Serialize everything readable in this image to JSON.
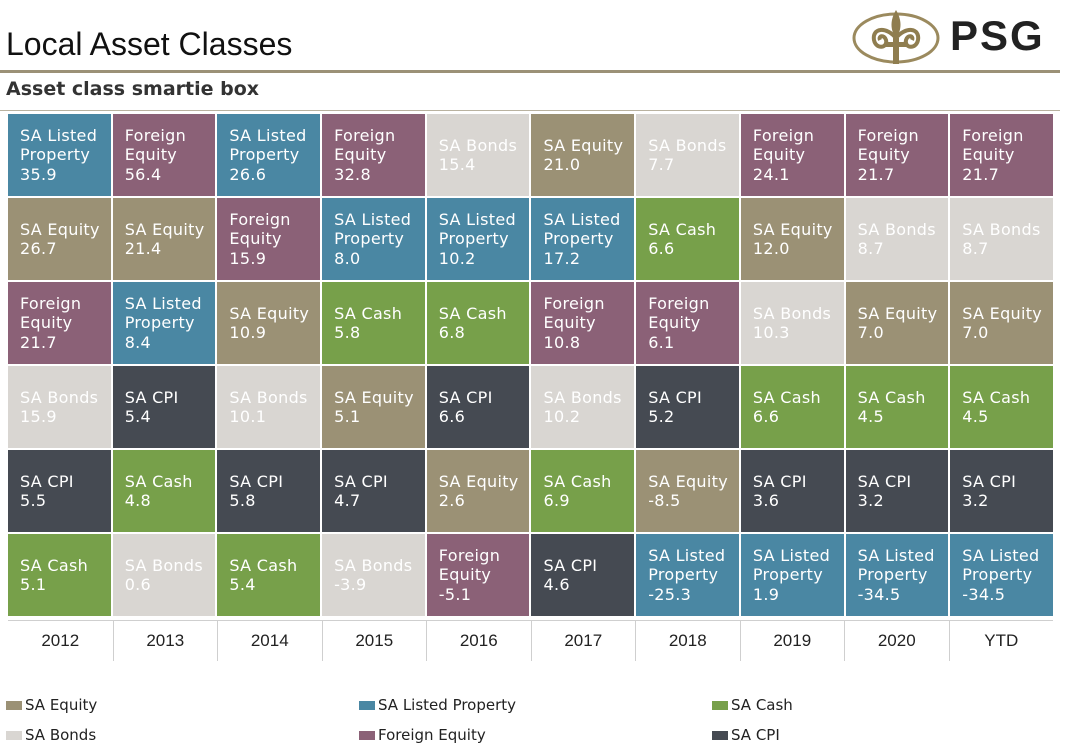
{
  "header": {
    "title": "Local Asset Classes",
    "subtitle": "Asset class smartie box",
    "logo_text": "PSG"
  },
  "colors": {
    "SA Equity": "#9b9175",
    "SA Listed Property": "#4a87a3",
    "SA Cash": "#77a04a",
    "SA Bonds": "#d9d6d2",
    "Foreign Equity": "#8b6177",
    "SA CPI": "#454a52"
  },
  "chart_data": {
    "type": "table",
    "columns": [
      "2012",
      "2013",
      "2014",
      "2015",
      "2016",
      "2017",
      "2018",
      "2019",
      "2020",
      "YTD"
    ],
    "ranked_cells": [
      [
        {
          "asset": "SA Listed Property",
          "lines": [
            "SA Listed",
            "Property"
          ],
          "value": "35.9"
        },
        {
          "asset": "SA Equity",
          "lines": [
            "SA Equity"
          ],
          "value": "26.7"
        },
        {
          "asset": "Foreign Equity",
          "lines": [
            "Foreign",
            "Equity"
          ],
          "value": "21.7"
        },
        {
          "asset": "SA Bonds",
          "lines": [
            "SA Bonds"
          ],
          "value": "15.9"
        },
        {
          "asset": "SA CPI",
          "lines": [
            "SA CPI"
          ],
          "value": "5.5"
        },
        {
          "asset": "SA Cash",
          "lines": [
            "SA Cash"
          ],
          "value": "5.1"
        }
      ],
      [
        {
          "asset": "Foreign Equity",
          "lines": [
            "Foreign",
            "Equity"
          ],
          "value": "56.4"
        },
        {
          "asset": "SA Equity",
          "lines": [
            "SA Equity"
          ],
          "value": "21.4"
        },
        {
          "asset": "SA Listed Property",
          "lines": [
            "SA Listed",
            "Property"
          ],
          "value": "8.4"
        },
        {
          "asset": "SA CPI",
          "lines": [
            "SA CPI"
          ],
          "value": "5.4"
        },
        {
          "asset": "SA Cash",
          "lines": [
            "SA Cash"
          ],
          "value": "4.8"
        },
        {
          "asset": "SA Bonds",
          "lines": [
            "SA Bonds"
          ],
          "value": "0.6"
        }
      ],
      [
        {
          "asset": "SA Listed Property",
          "lines": [
            "SA Listed",
            "Property"
          ],
          "value": "26.6"
        },
        {
          "asset": "Foreign Equity",
          "lines": [
            "Foreign",
            "Equity"
          ],
          "value": "15.9"
        },
        {
          "asset": "SA Equity",
          "lines": [
            "SA Equity"
          ],
          "value": "10.9"
        },
        {
          "asset": "SA Bonds",
          "lines": [
            "SA Bonds"
          ],
          "value": "10.1"
        },
        {
          "asset": "SA CPI",
          "lines": [
            "SA CPI"
          ],
          "value": "5.8"
        },
        {
          "asset": "SA Cash",
          "lines": [
            "SA Cash"
          ],
          "value": "5.4"
        }
      ],
      [
        {
          "asset": "Foreign Equity",
          "lines": [
            "Foreign",
            "Equity"
          ],
          "value": "32.8"
        },
        {
          "asset": "SA Listed Property",
          "lines": [
            "SA Listed",
            "Property"
          ],
          "value": "8.0"
        },
        {
          "asset": "SA Cash",
          "lines": [
            "SA Cash"
          ],
          "value": "5.8"
        },
        {
          "asset": "SA Equity",
          "lines": [
            "SA Equity"
          ],
          "value": "5.1"
        },
        {
          "asset": "SA CPI",
          "lines": [
            "SA CPI"
          ],
          "value": "4.7"
        },
        {
          "asset": "SA Bonds",
          "lines": [
            "SA Bonds"
          ],
          "value": "-3.9"
        }
      ],
      [
        {
          "asset": "SA Bonds",
          "lines": [
            "SA Bonds"
          ],
          "value": "15.4"
        },
        {
          "asset": "SA Listed Property",
          "lines": [
            "SA Listed",
            "Property"
          ],
          "value": "10.2"
        },
        {
          "asset": "SA Cash",
          "lines": [
            "SA Cash"
          ],
          "value": "6.8"
        },
        {
          "asset": "SA CPI",
          "lines": [
            "SA CPI"
          ],
          "value": "6.6"
        },
        {
          "asset": "SA Equity",
          "lines": [
            "SA Equity"
          ],
          "value": "2.6"
        },
        {
          "asset": "Foreign Equity",
          "lines": [
            "Foreign",
            "Equity"
          ],
          "value": "-5.1"
        }
      ],
      [
        {
          "asset": "SA Equity",
          "lines": [
            "SA Equity"
          ],
          "value": "21.0"
        },
        {
          "asset": "SA Listed Property",
          "lines": [
            "SA Listed",
            "Property"
          ],
          "value": "17.2"
        },
        {
          "asset": "Foreign Equity",
          "lines": [
            "Foreign",
            "Equity"
          ],
          "value": "10.8"
        },
        {
          "asset": "SA Bonds",
          "lines": [
            "SA Bonds"
          ],
          "value": "10.2"
        },
        {
          "asset": "SA Cash",
          "lines": [
            "SA Cash"
          ],
          "value": "6.9"
        },
        {
          "asset": "SA CPI",
          "lines": [
            "SA CPI"
          ],
          "value": "4.6"
        }
      ],
      [
        {
          "asset": "SA Bonds",
          "lines": [
            "SA Bonds"
          ],
          "value": "7.7"
        },
        {
          "asset": "SA Cash",
          "lines": [
            "SA Cash"
          ],
          "value": "6.6"
        },
        {
          "asset": "Foreign Equity",
          "lines": [
            "Foreign",
            "Equity"
          ],
          "value": "6.1"
        },
        {
          "asset": "SA CPI",
          "lines": [
            "SA CPI"
          ],
          "value": "5.2"
        },
        {
          "asset": "SA Equity",
          "lines": [
            "SA Equity"
          ],
          "value": "-8.5"
        },
        {
          "asset": "SA Listed Property",
          "lines": [
            "SA Listed",
            "Property"
          ],
          "value": "-25.3"
        }
      ],
      [
        {
          "asset": "Foreign Equity",
          "lines": [
            "Foreign",
            "Equity"
          ],
          "value": "24.1"
        },
        {
          "asset": "SA Equity",
          "lines": [
            "SA Equity"
          ],
          "value": "12.0"
        },
        {
          "asset": "SA Bonds",
          "lines": [
            "SA Bonds"
          ],
          "value": "10.3"
        },
        {
          "asset": "SA Cash",
          "lines": [
            "SA Cash"
          ],
          "value": "6.6"
        },
        {
          "asset": "SA CPI",
          "lines": [
            "SA CPI"
          ],
          "value": "3.6"
        },
        {
          "asset": "SA Listed Property",
          "lines": [
            "SA Listed",
            "Property"
          ],
          "value": "1.9"
        }
      ],
      [
        {
          "asset": "Foreign Equity",
          "lines": [
            "Foreign",
            "Equity"
          ],
          "value": "21.7"
        },
        {
          "asset": "SA Bonds",
          "lines": [
            "SA Bonds"
          ],
          "value": "8.7"
        },
        {
          "asset": "SA Equity",
          "lines": [
            "SA Equity"
          ],
          "value": "7.0"
        },
        {
          "asset": "SA Cash",
          "lines": [
            "SA Cash"
          ],
          "value": "4.5"
        },
        {
          "asset": "SA CPI",
          "lines": [
            "SA CPI"
          ],
          "value": "3.2"
        },
        {
          "asset": "SA Listed Property",
          "lines": [
            "SA Listed",
            "Property"
          ],
          "value": "-34.5"
        }
      ],
      [
        {
          "asset": "Foreign Equity",
          "lines": [
            "Foreign",
            "Equity"
          ],
          "value": "21.7"
        },
        {
          "asset": "SA Bonds",
          "lines": [
            "SA Bonds"
          ],
          "value": "8.7"
        },
        {
          "asset": "SA Equity",
          "lines": [
            "SA Equity"
          ],
          "value": "7.0"
        },
        {
          "asset": "SA Cash",
          "lines": [
            "SA Cash"
          ],
          "value": "4.5"
        },
        {
          "asset": "SA CPI",
          "lines": [
            "SA CPI"
          ],
          "value": "3.2"
        },
        {
          "asset": "SA Listed Property",
          "lines": [
            "SA Listed",
            "Property"
          ],
          "value": "-34.5"
        }
      ]
    ],
    "legend": [
      "SA Equity",
      "SA Listed Property",
      "SA Cash",
      "SA Bonds",
      "Foreign Equity",
      "SA CPI"
    ]
  }
}
